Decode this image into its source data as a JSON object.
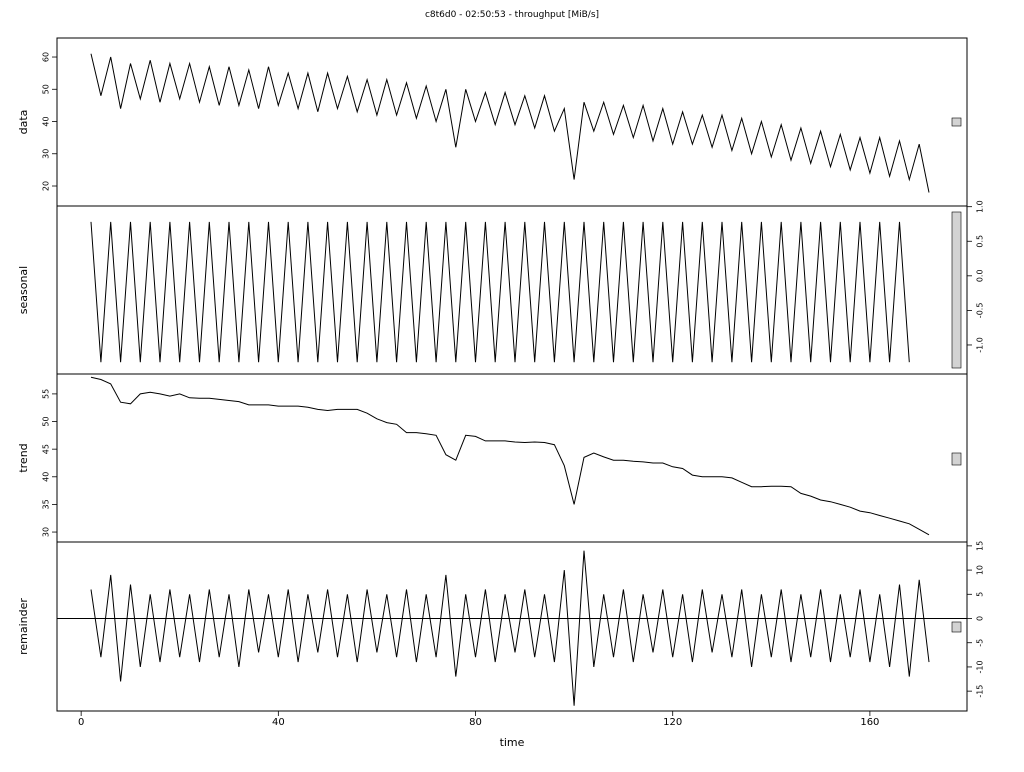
{
  "chart_data": {
    "type": "line",
    "title": "c8t6d0 - 02:50:53 - throughput [MiB/s]",
    "xlabel": "time",
    "xlim": [
      -4.9,
      179.7
    ],
    "xticks": [
      0,
      40,
      80,
      120,
      160
    ],
    "x": [
      2,
      4,
      6,
      8,
      10,
      12,
      14,
      16,
      18,
      20,
      22,
      24,
      26,
      28,
      30,
      32,
      34,
      36,
      38,
      40,
      42,
      44,
      46,
      48,
      50,
      52,
      54,
      56,
      58,
      60,
      62,
      64,
      66,
      68,
      70,
      72,
      74,
      76,
      78,
      80,
      82,
      84,
      86,
      88,
      90,
      92,
      94,
      96,
      98,
      100,
      102,
      104,
      106,
      108,
      110,
      112,
      114,
      116,
      118,
      120,
      122,
      124,
      126,
      128,
      130,
      132,
      134,
      136,
      138,
      140,
      142,
      144,
      146,
      148,
      150,
      152,
      154,
      156,
      158,
      160,
      162,
      164,
      166,
      168,
      170,
      172
    ],
    "color": "#000000",
    "panels": [
      {
        "ylabel": "data",
        "yaxis": "left",
        "ylim": [
          13.8,
          65.9
        ],
        "yticks": [
          20,
          30,
          40,
          50,
          60
        ],
        "values": [
          61,
          48,
          60,
          44,
          58,
          47,
          59,
          46,
          58,
          47,
          58,
          46,
          57,
          45,
          57,
          45,
          56,
          44,
          57,
          45,
          55,
          44,
          55,
          43,
          55,
          44,
          54,
          43,
          53,
          42,
          53,
          42,
          52,
          41,
          51,
          40,
          50,
          32,
          50,
          40,
          49,
          39,
          49,
          39,
          48,
          38,
          48,
          37,
          44,
          22,
          46,
          37,
          46,
          36,
          45,
          35,
          45,
          34,
          44,
          33,
          43,
          33,
          42,
          32,
          42,
          31,
          41,
          30,
          40,
          29,
          39,
          28,
          38,
          27,
          37,
          26,
          36,
          25,
          35,
          24,
          35,
          23,
          34,
          22,
          33,
          18
        ]
      },
      {
        "ylabel": "seasonal",
        "yaxis": "right",
        "ylim": [
          -1.42,
          1.01
        ],
        "yticks": [
          {
            "value": -1,
            "label": "-1.0"
          },
          {
            "value": -0.5,
            "label": "-0.5"
          },
          {
            "value": 0,
            "label": "0.0"
          },
          {
            "value": 0.5,
            "label": "0.5"
          },
          {
            "value": 1,
            "label": "1.0"
          }
        ],
        "values": [
          0.78,
          -1.25,
          0.78,
          -1.25,
          0.78,
          -1.25,
          0.78,
          -1.25,
          0.78,
          -1.25,
          0.78,
          -1.25,
          0.78,
          -1.25,
          0.78,
          -1.25,
          0.78,
          -1.25,
          0.78,
          -1.25,
          0.78,
          -1.25,
          0.78,
          -1.25,
          0.78,
          -1.25,
          0.78,
          -1.25,
          0.78,
          -1.25,
          0.78,
          -1.25,
          0.78,
          -1.25,
          0.78,
          -1.25,
          0.78,
          -1.25,
          0.78,
          -1.25,
          0.78,
          -1.25,
          0.78,
          -1.25,
          0.78,
          -1.25,
          0.78,
          -1.25,
          0.78,
          -1.25,
          0.78,
          -1.25,
          0.78,
          -1.25,
          0.78,
          -1.25,
          0.78,
          -1.25,
          0.78,
          -1.25,
          0.78,
          -1.25,
          0.78,
          -1.25,
          0.78,
          -1.25,
          0.78,
          -1.25,
          0.78,
          -1.25,
          0.78,
          -1.25,
          0.78,
          -1.25,
          0.78,
          -1.25,
          0.78,
          -1.25,
          0.78,
          -1.25,
          0.78,
          -1.25,
          0.78,
          -1.25
        ]
      },
      {
        "ylabel": "trend",
        "yaxis": "left",
        "ylim": [
          28.2,
          58.6
        ],
        "yticks": [
          30,
          35,
          40,
          45,
          50,
          55
        ],
        "values": [
          58,
          57.6,
          56.8,
          53.5,
          53.2,
          55,
          55.3,
          55,
          54.6,
          55,
          54.3,
          54.2,
          54.2,
          54,
          53.8,
          53.6,
          53,
          53,
          53,
          52.8,
          52.8,
          52.8,
          52.6,
          52.2,
          52,
          52.2,
          52.2,
          52.2,
          51.5,
          50.5,
          49.8,
          49.5,
          48,
          48,
          47.8,
          47.5,
          44,
          43,
          47.5,
          47.3,
          46.5,
          46.5,
          46.5,
          46.3,
          46.2,
          46.3,
          46.2,
          45.8,
          42,
          35,
          43.5,
          44.3,
          43.6,
          43,
          43,
          42.8,
          42.7,
          42.5,
          42.5,
          41.8,
          41.5,
          40.3,
          40,
          40,
          40,
          39.8,
          39,
          38.2,
          38.2,
          38.3,
          38.3,
          38.2,
          37,
          36.5,
          35.8,
          35.5,
          35,
          34.5,
          33.8,
          33.5,
          33,
          32.5,
          32,
          31.5,
          30.5,
          29.5
        ]
      },
      {
        "ylabel": "remainder",
        "yaxis": "right",
        "ylim": [
          -19.1,
          15.8
        ],
        "yticks": [
          -15,
          -10,
          -5,
          0,
          5,
          10,
          15
        ],
        "baseline": 0,
        "values": [
          6,
          -8,
          9,
          -13,
          7,
          -10,
          5,
          -9,
          6,
          -8,
          5,
          -9,
          6,
          -8,
          5,
          -10,
          6,
          -7,
          5,
          -8,
          6,
          -9,
          5,
          -7,
          6,
          -8,
          5,
          -9,
          6,
          -7,
          5,
          -8,
          6,
          -9,
          5,
          -8,
          9,
          -12,
          5,
          -8,
          6,
          -9,
          5,
          -7,
          6,
          -8,
          5,
          -9,
          10,
          -18,
          14,
          -10,
          5,
          -8,
          6,
          -9,
          5,
          -7,
          6,
          -8,
          5,
          -9,
          6,
          -7,
          5,
          -8,
          6,
          -10,
          5,
          -8,
          6,
          -9,
          5,
          -8,
          6,
          -9,
          5,
          -8,
          6,
          -9,
          5,
          -10,
          7,
          -12,
          8,
          -9
        ]
      }
    ]
  }
}
